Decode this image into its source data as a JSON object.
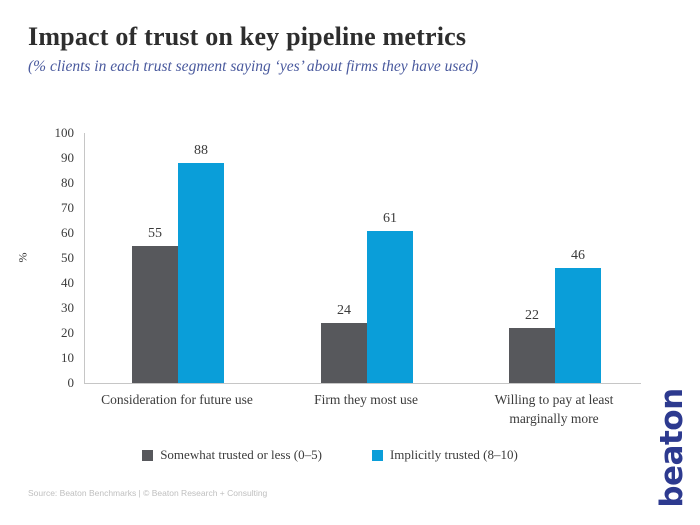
{
  "header": {
    "title": "Impact of trust on key pipeline metrics",
    "subtitle": "(% clients in each trust segment saying ‘yes’ about firms they have used)"
  },
  "chart_data": {
    "type": "bar",
    "categories": [
      "Consideration for future use",
      "Firm they most use",
      "Willing to pay at least marginally more"
    ],
    "series": [
      {
        "name": "Somewhat trusted or less (0–5)",
        "color": "#57585c",
        "values": [
          55,
          24,
          22
        ]
      },
      {
        "name": "Implicitly trusted (8–10)",
        "color": "#0a9ed9",
        "values": [
          88,
          61,
          46
        ]
      }
    ],
    "title": "Impact of trust on key pipeline metrics",
    "xlabel": "",
    "ylabel": "%",
    "ylim": [
      0,
      100
    ],
    "ytick_step": 10,
    "grid": false,
    "legend_position": "bottom",
    "value_labels": true
  },
  "footer": {
    "source": "Source: Beaton Benchmarks | © Beaton Research + Consulting"
  },
  "branding": {
    "logo_text": "beaton",
    "logo_color": "#2d3a8f"
  }
}
